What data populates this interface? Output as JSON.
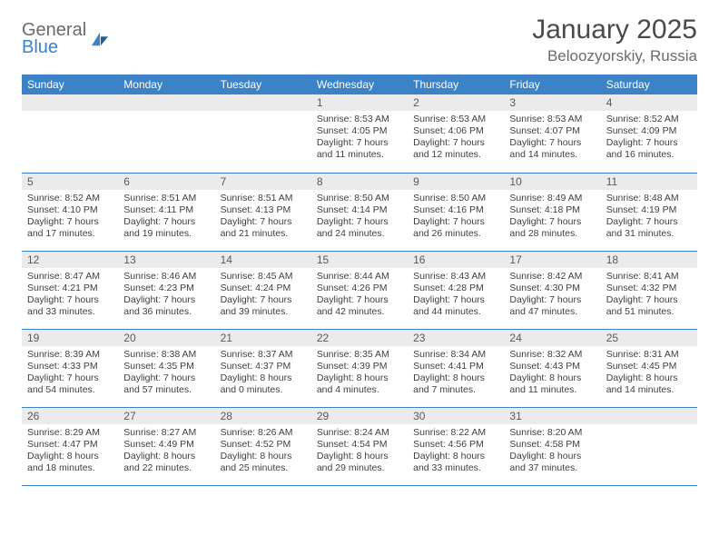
{
  "brand": {
    "word1": "General",
    "word2": "Blue",
    "color_gray": "#6b6b6b",
    "color_blue": "#3b82c7"
  },
  "title": "January 2025",
  "location": "Beloozyorskiy, Russia",
  "day_headers": [
    "Sunday",
    "Monday",
    "Tuesday",
    "Wednesday",
    "Thursday",
    "Friday",
    "Saturday"
  ],
  "colors": {
    "header_bg": "#3b82c7",
    "header_fg": "#ffffff",
    "daynum_bg": "#ebebeb",
    "rule": "#3b82c7",
    "text": "#3f3f3f"
  },
  "weeks": [
    [
      null,
      null,
      null,
      {
        "n": "1",
        "sr": "8:53 AM",
        "ss": "4:05 PM",
        "dl": "7 hours and 11 minutes."
      },
      {
        "n": "2",
        "sr": "8:53 AM",
        "ss": "4:06 PM",
        "dl": "7 hours and 12 minutes."
      },
      {
        "n": "3",
        "sr": "8:53 AM",
        "ss": "4:07 PM",
        "dl": "7 hours and 14 minutes."
      },
      {
        "n": "4",
        "sr": "8:52 AM",
        "ss": "4:09 PM",
        "dl": "7 hours and 16 minutes."
      }
    ],
    [
      {
        "n": "5",
        "sr": "8:52 AM",
        "ss": "4:10 PM",
        "dl": "7 hours and 17 minutes."
      },
      {
        "n": "6",
        "sr": "8:51 AM",
        "ss": "4:11 PM",
        "dl": "7 hours and 19 minutes."
      },
      {
        "n": "7",
        "sr": "8:51 AM",
        "ss": "4:13 PM",
        "dl": "7 hours and 21 minutes."
      },
      {
        "n": "8",
        "sr": "8:50 AM",
        "ss": "4:14 PM",
        "dl": "7 hours and 24 minutes."
      },
      {
        "n": "9",
        "sr": "8:50 AM",
        "ss": "4:16 PM",
        "dl": "7 hours and 26 minutes."
      },
      {
        "n": "10",
        "sr": "8:49 AM",
        "ss": "4:18 PM",
        "dl": "7 hours and 28 minutes."
      },
      {
        "n": "11",
        "sr": "8:48 AM",
        "ss": "4:19 PM",
        "dl": "7 hours and 31 minutes."
      }
    ],
    [
      {
        "n": "12",
        "sr": "8:47 AM",
        "ss": "4:21 PM",
        "dl": "7 hours and 33 minutes."
      },
      {
        "n": "13",
        "sr": "8:46 AM",
        "ss": "4:23 PM",
        "dl": "7 hours and 36 minutes."
      },
      {
        "n": "14",
        "sr": "8:45 AM",
        "ss": "4:24 PM",
        "dl": "7 hours and 39 minutes."
      },
      {
        "n": "15",
        "sr": "8:44 AM",
        "ss": "4:26 PM",
        "dl": "7 hours and 42 minutes."
      },
      {
        "n": "16",
        "sr": "8:43 AM",
        "ss": "4:28 PM",
        "dl": "7 hours and 44 minutes."
      },
      {
        "n": "17",
        "sr": "8:42 AM",
        "ss": "4:30 PM",
        "dl": "7 hours and 47 minutes."
      },
      {
        "n": "18",
        "sr": "8:41 AM",
        "ss": "4:32 PM",
        "dl": "7 hours and 51 minutes."
      }
    ],
    [
      {
        "n": "19",
        "sr": "8:39 AM",
        "ss": "4:33 PM",
        "dl": "7 hours and 54 minutes."
      },
      {
        "n": "20",
        "sr": "8:38 AM",
        "ss": "4:35 PM",
        "dl": "7 hours and 57 minutes."
      },
      {
        "n": "21",
        "sr": "8:37 AM",
        "ss": "4:37 PM",
        "dl": "8 hours and 0 minutes."
      },
      {
        "n": "22",
        "sr": "8:35 AM",
        "ss": "4:39 PM",
        "dl": "8 hours and 4 minutes."
      },
      {
        "n": "23",
        "sr": "8:34 AM",
        "ss": "4:41 PM",
        "dl": "8 hours and 7 minutes."
      },
      {
        "n": "24",
        "sr": "8:32 AM",
        "ss": "4:43 PM",
        "dl": "8 hours and 11 minutes."
      },
      {
        "n": "25",
        "sr": "8:31 AM",
        "ss": "4:45 PM",
        "dl": "8 hours and 14 minutes."
      }
    ],
    [
      {
        "n": "26",
        "sr": "8:29 AM",
        "ss": "4:47 PM",
        "dl": "8 hours and 18 minutes."
      },
      {
        "n": "27",
        "sr": "8:27 AM",
        "ss": "4:49 PM",
        "dl": "8 hours and 22 minutes."
      },
      {
        "n": "28",
        "sr": "8:26 AM",
        "ss": "4:52 PM",
        "dl": "8 hours and 25 minutes."
      },
      {
        "n": "29",
        "sr": "8:24 AM",
        "ss": "4:54 PM",
        "dl": "8 hours and 29 minutes."
      },
      {
        "n": "30",
        "sr": "8:22 AM",
        "ss": "4:56 PM",
        "dl": "8 hours and 33 minutes."
      },
      {
        "n": "31",
        "sr": "8:20 AM",
        "ss": "4:58 PM",
        "dl": "8 hours and 37 minutes."
      },
      null
    ]
  ],
  "labels": {
    "sunrise": "Sunrise:",
    "sunset": "Sunset:",
    "daylight": "Daylight:"
  }
}
